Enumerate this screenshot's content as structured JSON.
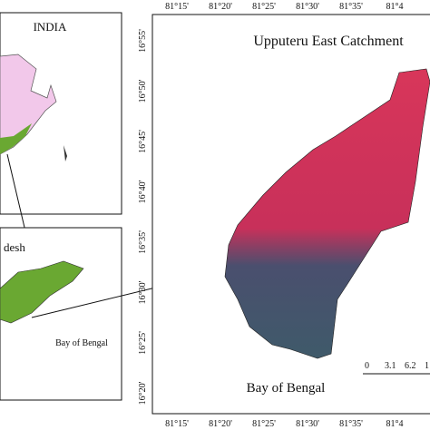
{
  "inset_india": {
    "label": "INDIA"
  },
  "inset_state": {
    "label": "desh",
    "sea_label": "Bay of Bengal"
  },
  "main_map": {
    "title": "Upputeru East Catchment",
    "sea_label": "Bay of Bengal",
    "longitude_labels": [
      "81°15'",
      "81°20'",
      "81°25'",
      "81°30'",
      "81°35'",
      "81°4"
    ],
    "latitude_labels": [
      "16°55'",
      "16°50'",
      "16°45'",
      "16°40'",
      "16°35'",
      "16°30'",
      "16°25'",
      "16°20'"
    ],
    "scale_labels": [
      "0",
      "3.1",
      "6.2",
      "1"
    ]
  }
}
